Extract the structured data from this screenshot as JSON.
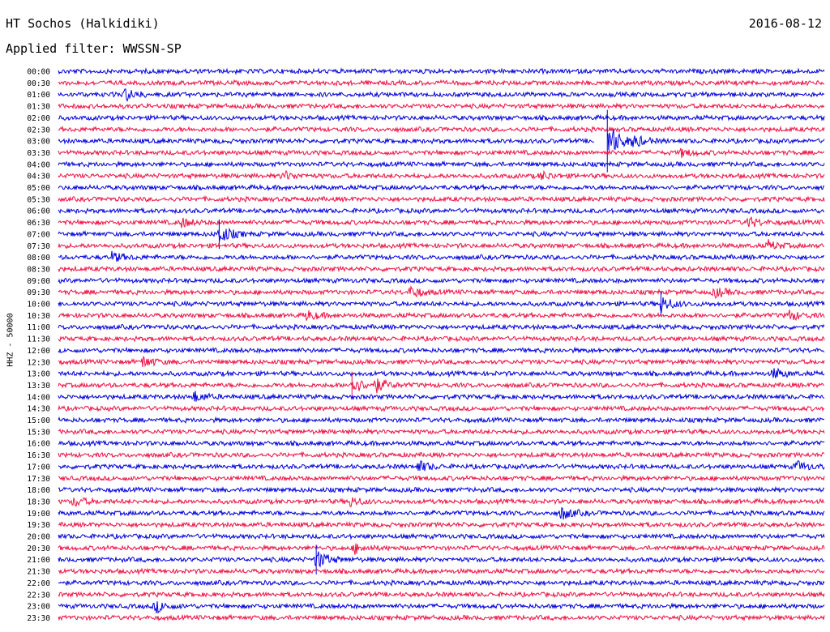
{
  "header": {
    "station": "HT Sochos (Halkidiki)",
    "date": "2016-08-12",
    "filter": "Applied filter: WWSSN-SP"
  },
  "chart_data": {
    "type": "line",
    "ylabel": "HHZ - 50000",
    "colors": {
      "even_rows": "#0000dd",
      "odd_rows": "#ee1144"
    },
    "rows": [
      "00:00",
      "00:30",
      "01:00",
      "01:30",
      "02:00",
      "02:30",
      "03:00",
      "03:30",
      "04:00",
      "04:30",
      "05:00",
      "05:30",
      "06:00",
      "06:30",
      "07:00",
      "07:30",
      "08:00",
      "08:30",
      "09:00",
      "09:30",
      "10:00",
      "10:30",
      "11:00",
      "11:30",
      "12:00",
      "12:30",
      "13:00",
      "13:30",
      "14:00",
      "14:30",
      "15:00",
      "15:30",
      "16:00",
      "16:30",
      "17:00",
      "17:30",
      "18:00",
      "18:30",
      "19:00",
      "19:30",
      "20:00",
      "20:30",
      "21:00",
      "21:30",
      "22:00",
      "22:30",
      "23:00",
      "23:30"
    ],
    "x_range_minutes": [
      0,
      30
    ],
    "events": [
      {
        "row": "01:00",
        "minute": 2.6,
        "amp": 1.6
      },
      {
        "row": "03:00",
        "minute": 21.5,
        "amp": 5.5
      },
      {
        "row": "03:00",
        "minute": 22.5,
        "amp": 1.4
      },
      {
        "row": "03:30",
        "minute": 24.4,
        "amp": 1.0
      },
      {
        "row": "04:30",
        "minute": 8.8,
        "amp": 1.2
      },
      {
        "row": "04:30",
        "minute": 18.9,
        "amp": 1.1
      },
      {
        "row": "06:30",
        "minute": 4.8,
        "amp": 1.2
      },
      {
        "row": "06:30",
        "minute": 27.0,
        "amp": 1.4
      },
      {
        "row": "07:00",
        "minute": 6.3,
        "amp": 2.6
      },
      {
        "row": "07:30",
        "minute": 27.8,
        "amp": 1.2
      },
      {
        "row": "08:00",
        "minute": 2.1,
        "amp": 1.3
      },
      {
        "row": "09:30",
        "minute": 13.8,
        "amp": 1.6
      },
      {
        "row": "09:30",
        "minute": 25.7,
        "amp": 1.4
      },
      {
        "row": "10:00",
        "minute": 23.6,
        "amp": 2.2
      },
      {
        "row": "10:30",
        "minute": 9.7,
        "amp": 1.3
      },
      {
        "row": "10:30",
        "minute": 28.6,
        "amp": 1.4
      },
      {
        "row": "12:30",
        "minute": 3.3,
        "amp": 1.5
      },
      {
        "row": "13:00",
        "minute": 28.0,
        "amp": 1.4
      },
      {
        "row": "13:30",
        "minute": 11.5,
        "amp": 2.4
      },
      {
        "row": "13:30",
        "minute": 12.4,
        "amp": 1.8
      },
      {
        "row": "14:00",
        "minute": 5.3,
        "amp": 1.4
      },
      {
        "row": "17:00",
        "minute": 14.1,
        "amp": 1.5
      },
      {
        "row": "17:00",
        "minute": 28.9,
        "amp": 1.4
      },
      {
        "row": "18:30",
        "minute": 0.6,
        "amp": 1.3
      },
      {
        "row": "18:30",
        "minute": 11.4,
        "amp": 1.3
      },
      {
        "row": "19:00",
        "minute": 19.7,
        "amp": 1.8
      },
      {
        "row": "20:30",
        "minute": 11.6,
        "amp": 1.3
      },
      {
        "row": "21:00",
        "minute": 10.1,
        "amp": 2.6
      },
      {
        "row": "23:00",
        "minute": 3.8,
        "amp": 1.6
      }
    ],
    "gaps": [
      {
        "row": "03:00",
        "start_minute": 21.0,
        "end_minute": 21.5
      }
    ]
  }
}
